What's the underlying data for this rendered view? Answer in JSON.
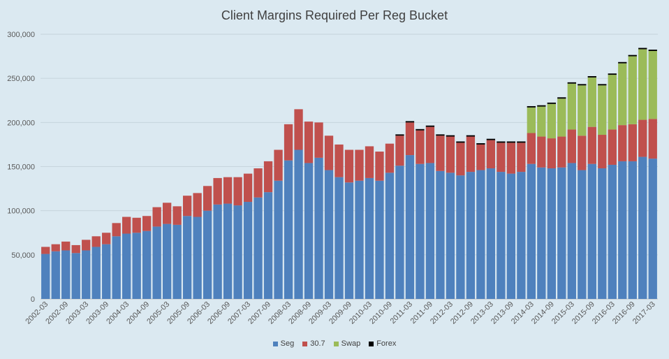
{
  "chart_data": {
    "type": "bar",
    "stacked": true,
    "title": "Client Margins Required Per Reg Bucket",
    "xlabel": "",
    "ylabel": "",
    "ylim": [
      0,
      300000
    ],
    "yticks": [
      "0",
      "50,000",
      "100,000",
      "150,000",
      "200,000",
      "250,000",
      "300,000"
    ],
    "yticks_values": [
      0,
      50000,
      100000,
      150000,
      200000,
      250000,
      300000
    ],
    "grid": true,
    "legend_position": "bottom",
    "categories": [
      "2002-03",
      "2002-06",
      "2002-09",
      "2002-12",
      "2003-03",
      "2003-06",
      "2003-09",
      "2003-12",
      "2004-03",
      "2004-06",
      "2004-09",
      "2004-12",
      "2005-03",
      "2005-06",
      "2005-09",
      "2005-12",
      "2006-03",
      "2006-06",
      "2006-09",
      "2006-12",
      "2007-03",
      "2007-06",
      "2007-09",
      "2007-12",
      "2008-03",
      "2008-06",
      "2008-09",
      "2008-12",
      "2009-03",
      "2009-06",
      "2009-09",
      "2009-12",
      "2010-03",
      "2010-06",
      "2010-09",
      "2010-12",
      "2011-03",
      "2011-06",
      "2011-09",
      "2011-12",
      "2012-03",
      "2012-06",
      "2012-09",
      "2012-12",
      "2013-03",
      "2013-06",
      "2013-09",
      "2013-12",
      "2014-03",
      "2014-06",
      "2014-09",
      "2014-12",
      "2015-03",
      "2015-06",
      "2015-09",
      "2015-12",
      "2016-03",
      "2016-06",
      "2016-09",
      "2016-12",
      "2017-03"
    ],
    "x_tick_labels": [
      "2002-03",
      "2002-09",
      "2003-03",
      "2003-09",
      "2004-03",
      "2004-09",
      "2005-03",
      "2005-09",
      "2006-03",
      "2006-09",
      "2007-03",
      "2007-09",
      "2008-03",
      "2008-09",
      "2009-03",
      "2009-09",
      "2010-03",
      "2010-09",
      "2011-03",
      "2011-09",
      "2012-03",
      "2012-09",
      "2013-03",
      "2013-09",
      "2014-03",
      "2014-09",
      "2015-03",
      "2015-09",
      "2016-03",
      "2016-09",
      "2017-03"
    ],
    "series": [
      {
        "name": "Seg",
        "color": "#4f81bd",
        "values": [
          51000,
          54000,
          55000,
          52000,
          55000,
          59000,
          62000,
          71000,
          74000,
          75000,
          77000,
          82000,
          85000,
          84000,
          94000,
          93000,
          100000,
          107000,
          108000,
          106000,
          110000,
          115000,
          121000,
          134000,
          157000,
          169000,
          154000,
          160000,
          146000,
          138000,
          132000,
          134000,
          137000,
          134000,
          143000,
          151000,
          163000,
          153000,
          154000,
          145000,
          143000,
          140000,
          144000,
          146000,
          148000,
          144000,
          142000,
          144000,
          153000,
          149000,
          148000,
          149000,
          154000,
          146000,
          153000,
          148000,
          152000,
          156000,
          156000,
          161000,
          159000
        ]
      },
      {
        "name": "30.7",
        "color": "#c0504d",
        "values": [
          8000,
          8000,
          10000,
          9000,
          12000,
          12000,
          13000,
          15000,
          19000,
          17000,
          17000,
          22000,
          24000,
          21000,
          23000,
          27000,
          28000,
          30000,
          30000,
          32000,
          32000,
          33000,
          35000,
          35000,
          41000,
          46000,
          47000,
          40000,
          39000,
          37000,
          37000,
          35000,
          36000,
          33000,
          33000,
          34000,
          37000,
          38000,
          41000,
          40000,
          41000,
          37000,
          40000,
          29000,
          32000,
          33000,
          35000,
          33000,
          35000,
          35000,
          34000,
          35000,
          38000,
          39000,
          42000,
          38000,
          40000,
          41000,
          42000,
          42000,
          45000
        ]
      },
      {
        "name": "Swap",
        "color": "#9bbb59",
        "values": [
          0,
          0,
          0,
          0,
          0,
          0,
          0,
          0,
          0,
          0,
          0,
          0,
          0,
          0,
          0,
          0,
          0,
          0,
          0,
          0,
          0,
          0,
          0,
          0,
          0,
          0,
          0,
          0,
          0,
          0,
          0,
          0,
          0,
          0,
          0,
          0,
          0,
          0,
          0,
          0,
          0,
          0,
          0,
          0,
          0,
          0,
          0,
          0,
          29000,
          34000,
          39000,
          43000,
          52000,
          57000,
          56000,
          56000,
          62000,
          70000,
          77000,
          80000,
          77000
        ]
      },
      {
        "name": "Forex",
        "color": "#000000",
        "values": [
          0,
          0,
          0,
          0,
          0,
          0,
          0,
          0,
          0,
          0,
          0,
          0,
          0,
          0,
          0,
          0,
          0,
          0,
          0,
          0,
          0,
          0,
          0,
          0,
          0,
          0,
          0,
          0,
          0,
          0,
          0,
          0,
          0,
          0,
          0,
          1500,
          1500,
          1500,
          1500,
          1500,
          1500,
          1500,
          1500,
          1500,
          1500,
          1500,
          1500,
          1500,
          1500,
          1500,
          1500,
          1500,
          1500,
          1500,
          1500,
          1500,
          1500,
          1500,
          1500,
          1500,
          1500
        ]
      }
    ]
  }
}
